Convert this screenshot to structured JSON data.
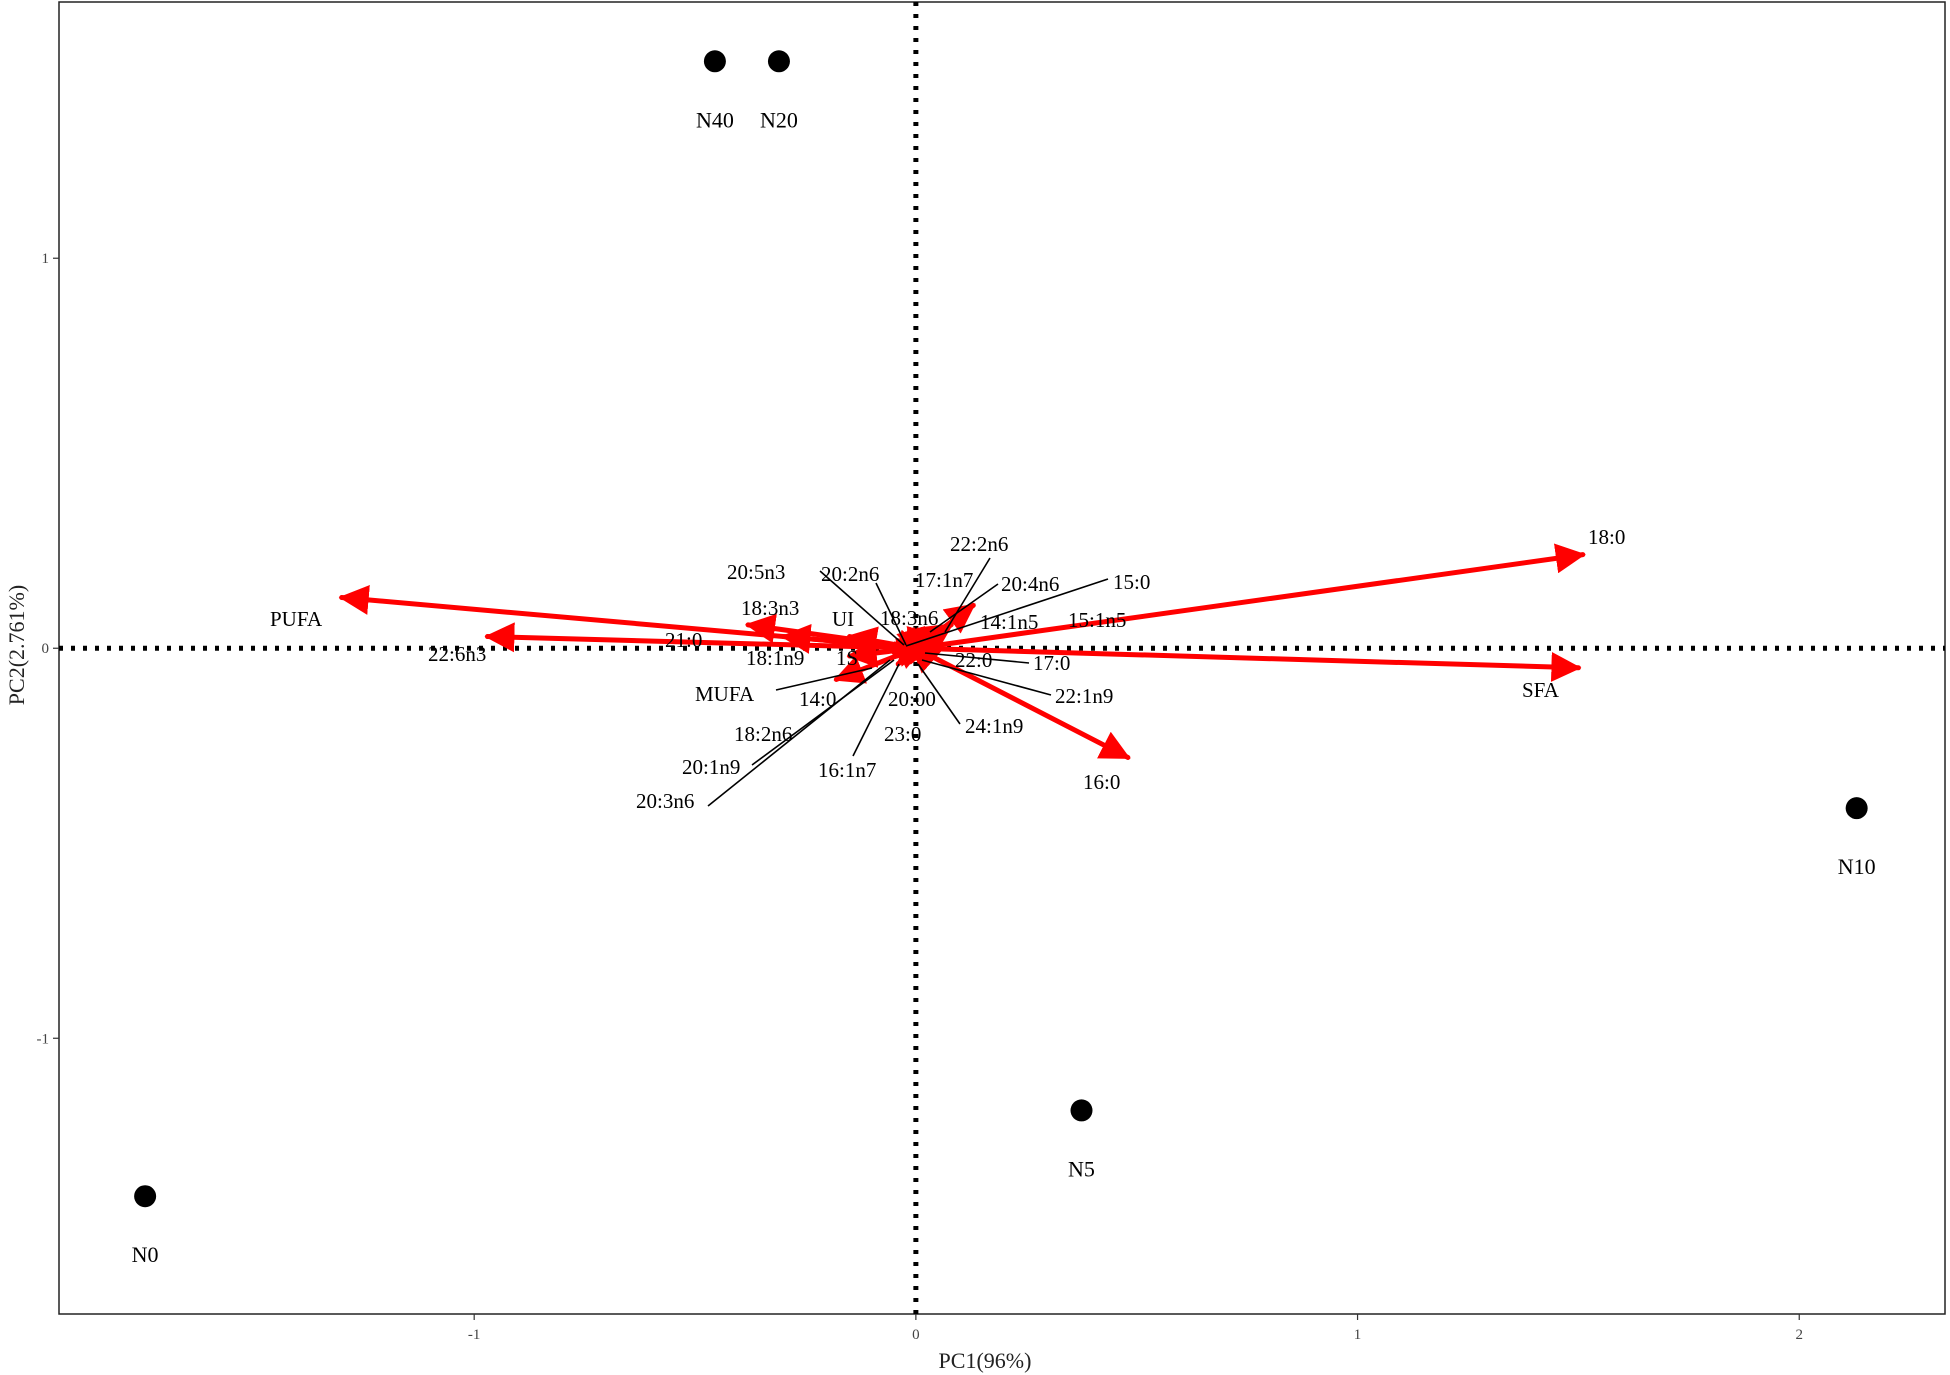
{
  "chart_data": {
    "type": "scatter",
    "title": "",
    "xlabel": "PC1(96%)",
    "ylabel": "PC2(2.761%)",
    "xlim": [
      -1.94,
      2.33
    ],
    "ylim": [
      -1.707,
      1.657
    ],
    "x_ticks": [
      -1,
      0,
      1,
      2
    ],
    "y_ticks": [
      -1,
      0,
      1
    ],
    "grid": false,
    "reference_lines": {
      "x": 0,
      "y": 0,
      "style": "dotted"
    },
    "points": [
      {
        "label": "N40",
        "x": -0.455,
        "y": 1.505
      },
      {
        "label": "N20",
        "x": -0.31,
        "y": 1.505
      },
      {
        "label": "N10",
        "x": 2.13,
        "y": -0.41
      },
      {
        "label": "N5",
        "x": 0.375,
        "y": -1.185
      },
      {
        "label": "N0",
        "x": -1.745,
        "y": -1.405
      }
    ],
    "vectors": [
      {
        "label": "18:0",
        "x": 1.51,
        "y": 0.24
      },
      {
        "label": "SFA",
        "x": 1.5,
        "y": -0.05
      },
      {
        "label": "PUFA",
        "x": -1.3,
        "y": 0.13
      },
      {
        "label": "22:6n3",
        "x": -0.97,
        "y": 0.03
      },
      {
        "label": "16:0",
        "x": 0.48,
        "y": -0.28
      },
      {
        "label": "MUFA",
        "x": -0.18,
        "y": -0.08
      },
      {
        "label": "18:3n3",
        "x": -0.38,
        "y": 0.06
      },
      {
        "label": "21:0",
        "x": -0.3,
        "y": 0.03
      },
      {
        "label": "UI",
        "x": -0.15,
        "y": 0.03
      },
      {
        "label": "18:1n9",
        "x": -0.15,
        "y": -0.02
      },
      {
        "label": "15:0",
        "x": 0.04,
        "y": 0.01
      },
      {
        "label": "17:1n7",
        "x": 0.13,
        "y": 0.11
      },
      {
        "label": "20:4n6",
        "x": 0.08,
        "y": 0.06
      },
      {
        "label": "22:2n6",
        "x": 0.06,
        "y": 0.05
      },
      {
        "label": "20:5n3",
        "x": -0.03,
        "y": 0.01
      },
      {
        "label": "20:2n6",
        "x": -0.02,
        "y": 0.01
      },
      {
        "label": "18:3n6",
        "x": -0.01,
        "y": 0.01
      },
      {
        "label": "14:1n5",
        "x": 0.02,
        "y": 0.01
      },
      {
        "label": "15:1n5",
        "x": 0.02,
        "y": 0.005
      },
      {
        "label": "22:0",
        "x": 0.02,
        "y": -0.005
      },
      {
        "label": "17:0",
        "x": 0.03,
        "y": -0.01
      },
      {
        "label": "22:1n9",
        "x": 0.03,
        "y": -0.02
      },
      {
        "label": "24:1n9",
        "x": 0.02,
        "y": -0.02
      },
      {
        "label": "20:00",
        "x": 0.005,
        "y": -0.02
      },
      {
        "label": "23:0",
        "x": -0.005,
        "y": -0.02
      },
      {
        "label": "14:0",
        "x": -0.02,
        "y": -0.02
      },
      {
        "label": "16:1n7",
        "x": -0.01,
        "y": -0.03
      },
      {
        "label": "18:2n6",
        "x": -0.02,
        "y": -0.03
      },
      {
        "label": "20:1n9",
        "x": -0.03,
        "y": -0.03
      },
      {
        "label": "20:3n6",
        "x": -0.04,
        "y": -0.04
      },
      {
        "label": "1S",
        "x": -0.05,
        "y": -0.01
      }
    ],
    "colors": {
      "points": "#000000",
      "vectors": "#ff0000",
      "reference_lines": "#000000"
    }
  }
}
